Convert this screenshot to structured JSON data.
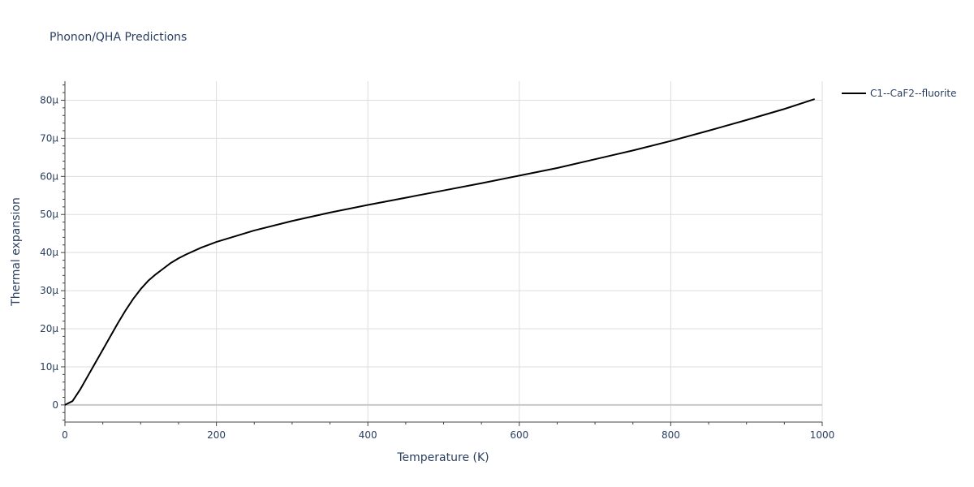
{
  "chart_data": {
    "type": "line",
    "title": "Phonon/QHA Predictions",
    "xlabel": "Temperature (K)",
    "ylabel": "Thermal expansion",
    "xlim": [
      0,
      1000
    ],
    "ylim": [
      -4.5e-06,
      8.5e-05
    ],
    "x_ticks": [
      0,
      200,
      400,
      600,
      800,
      1000
    ],
    "x_tick_labels": [
      "0",
      "200",
      "400",
      "600",
      "800",
      "1000"
    ],
    "y_ticks": [
      0,
      1e-05,
      2e-05,
      3e-05,
      4e-05,
      5e-05,
      6e-05,
      7e-05,
      8e-05
    ],
    "y_tick_labels": [
      "0",
      "10μ",
      "20μ",
      "30μ",
      "40μ",
      "50μ",
      "60μ",
      "70μ",
      "80μ"
    ],
    "grid": true,
    "legend_position": "top-right",
    "series": [
      {
        "name": "C1--CaF2--fluorite",
        "color": "#000000",
        "x": [
          0,
          10,
          20,
          30,
          40,
          50,
          60,
          70,
          80,
          90,
          100,
          110,
          120,
          130,
          140,
          150,
          160,
          180,
          200,
          220,
          250,
          300,
          350,
          400,
          450,
          500,
          550,
          600,
          650,
          700,
          750,
          800,
          850,
          900,
          950,
          990
        ],
        "y": [
          0,
          1e-06,
          4e-06,
          7.5e-06,
          1.1e-05,
          1.45e-05,
          1.8e-05,
          2.15e-05,
          2.48e-05,
          2.78e-05,
          3.04e-05,
          3.26e-05,
          3.43e-05,
          3.58e-05,
          3.73e-05,
          3.85e-05,
          3.95e-05,
          4.13e-05,
          4.28e-05,
          4.4e-05,
          4.58e-05,
          4.83e-05,
          5.05e-05,
          5.25e-05,
          5.44e-05,
          5.63e-05,
          5.82e-05,
          6.02e-05,
          6.22e-05,
          6.45e-05,
          6.68e-05,
          6.93e-05,
          7.2e-05,
          7.48e-05,
          7.77e-05,
          8.03e-05
        ]
      }
    ]
  }
}
